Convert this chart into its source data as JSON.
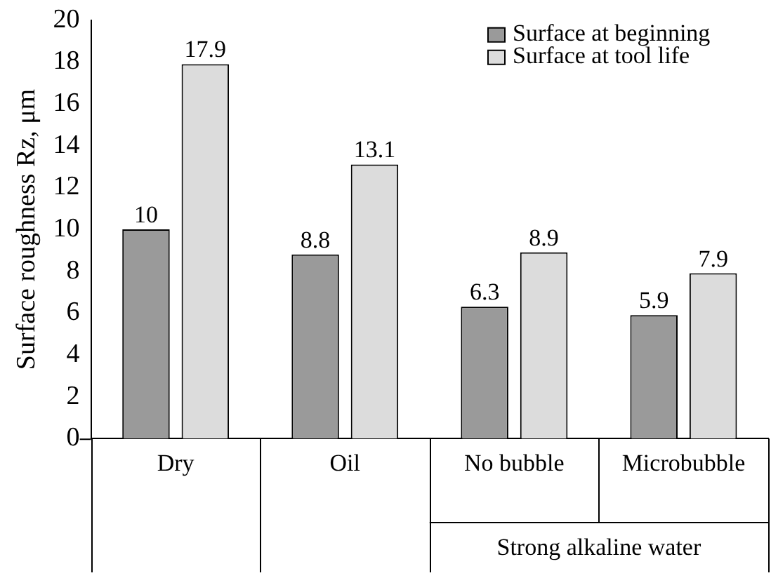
{
  "chart_data": {
    "type": "bar",
    "ylabel": "Surface roughness Rz, μm",
    "categories": [
      "Dry",
      "Oil",
      "No bubble",
      "Microbubble"
    ],
    "series": [
      {
        "name": "Surface at beginning",
        "color": "#9a9a9a",
        "values": [
          10,
          8.8,
          6.3,
          5.9
        ]
      },
      {
        "name": "Surface at tool life",
        "color": "#dcdcdc",
        "values": [
          17.9,
          13.1,
          8.9,
          7.9
        ]
      }
    ],
    "ylim": [
      0,
      20
    ],
    "yticks": [
      0,
      2,
      4,
      6,
      8,
      10,
      12,
      14,
      16,
      18,
      20
    ],
    "grid": false,
    "legend": "top right",
    "data_labels": true,
    "annotations": [
      "Strong alkaline water"
    ]
  }
}
